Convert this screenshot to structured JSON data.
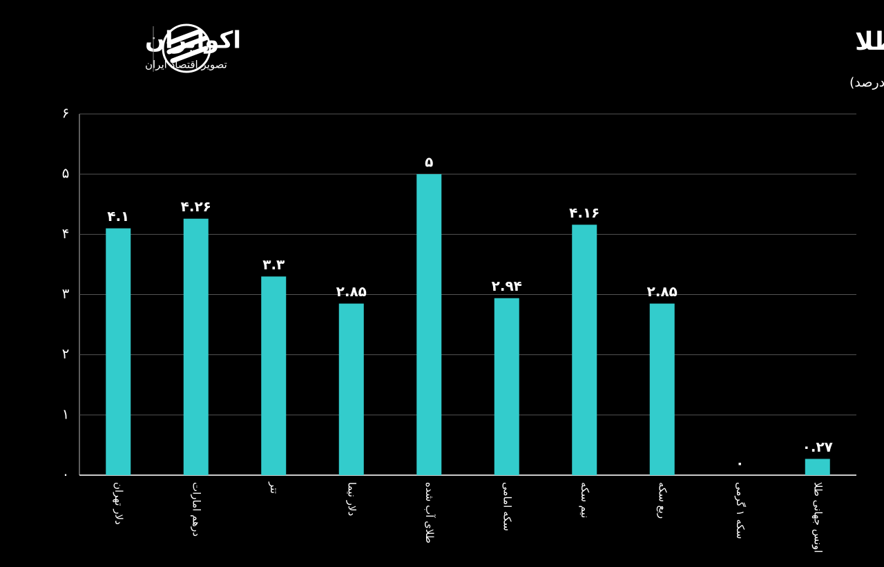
{
  "chart_data": {
    "type": "bar",
    "title": "تغییرات هفتگی بازار ارز و طلا",
    "subtitle": "(واحد: درصد)",
    "categories": [
      "دلار تهران",
      "درهم امارات",
      "تتر",
      "دلار نیما",
      "طلای آب شده",
      "سکه امامی",
      "نیم سکه",
      "ربع سکه",
      "سکه ۱ گرمی",
      "اونس جهانی طلا"
    ],
    "values": [
      4.1,
      4.26,
      3.3,
      2.85,
      5,
      2.94,
      4.16,
      2.85,
      0,
      0.27
    ],
    "value_labels": [
      "۴.۱",
      "۴.۲۶",
      "۳.۳",
      "۲.۸۵",
      "۵",
      "۲.۹۴",
      "۴.۱۶",
      "۲.۸۵",
      "۰",
      "۰.۲۷"
    ],
    "color": "#33cccc",
    "ylim": [
      0,
      6
    ],
    "yticks": [
      {
        "value": 0,
        "label": "۰"
      },
      {
        "value": 1,
        "label": "۱"
      },
      {
        "value": 2,
        "label": "۲"
      },
      {
        "value": 3,
        "label": "۳"
      },
      {
        "value": 4,
        "label": "۴"
      },
      {
        "value": 5,
        "label": "۵"
      },
      {
        "value": 6,
        "label": "۶"
      }
    ],
    "grid": true
  },
  "logo": {
    "name": "اکوایران",
    "tagline": "تصویر اقتصاد ایران"
  }
}
